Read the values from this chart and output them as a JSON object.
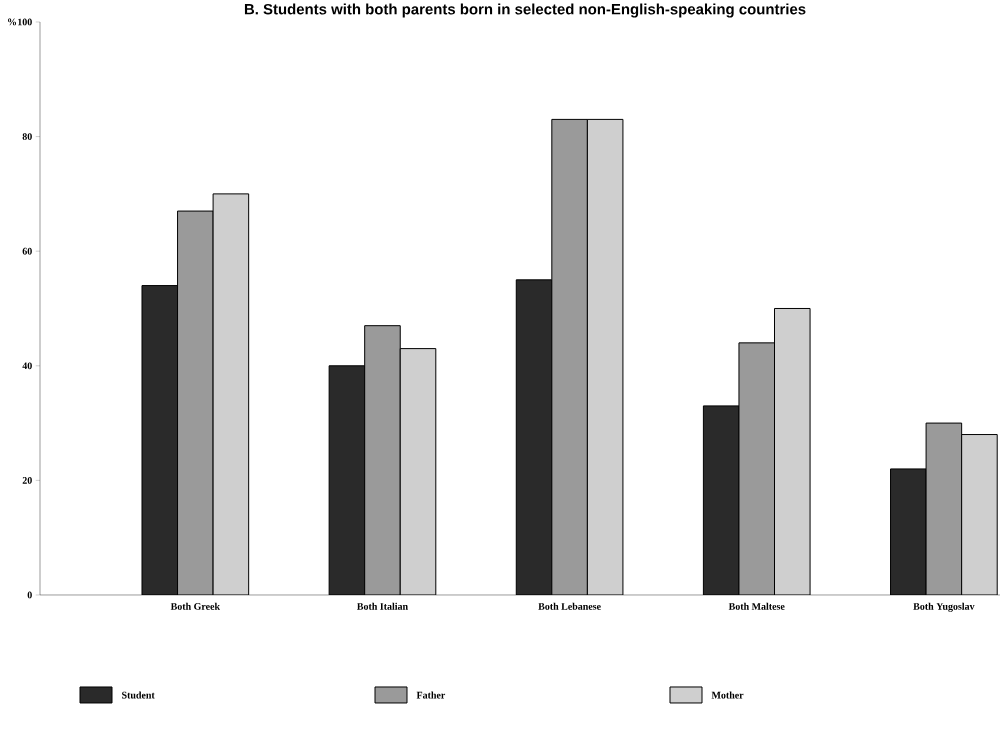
{
  "chart_data": {
    "type": "bar",
    "title": "B.  Students with both parents born in selected non-English-speaking countries",
    "ylabel": "%",
    "categories": [
      "Both Greek",
      "Both Italian",
      "Both Lebanese",
      "Both Maltese",
      "Both Yugoslav"
    ],
    "series": [
      {
        "name": "Student",
        "color": "#2a2a2a",
        "values": [
          54,
          40,
          55,
          33,
          22
        ]
      },
      {
        "name": "Father",
        "color": "#9a9a9a",
        "values": [
          67,
          47,
          83,
          44,
          30
        ]
      },
      {
        "name": "Mother",
        "color": "#cfcfcf",
        "values": [
          70,
          43,
          83,
          50,
          28
        ]
      }
    ],
    "ylim": [
      0,
      100
    ],
    "yticks": [
      0,
      20,
      40,
      60,
      80,
      100
    ],
    "grid": false,
    "legend": "bottom"
  }
}
